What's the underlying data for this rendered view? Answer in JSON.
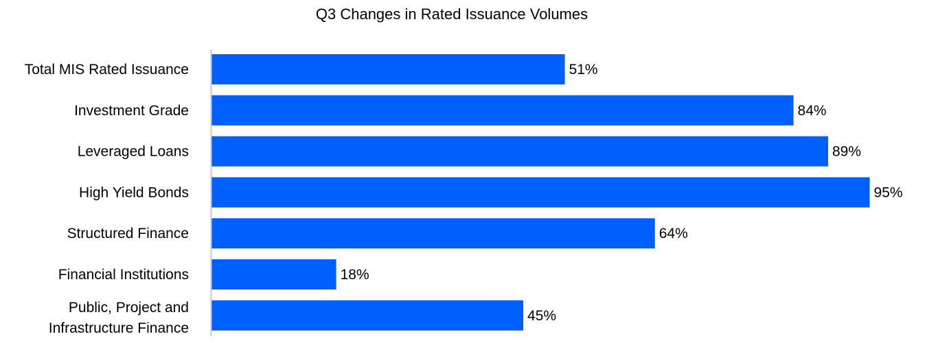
{
  "chart_data": {
    "type": "bar",
    "orientation": "horizontal",
    "title": "Q3 Changes in Rated Issuance Volumes",
    "categories": [
      "Total MIS Rated Issuance",
      "Investment Grade",
      "Leveraged Loans",
      "High Yield Bonds",
      "Structured Finance",
      "Financial Institutions",
      "Public, Project and Infrastructure Finance"
    ],
    "values": [
      51,
      84,
      89,
      95,
      64,
      18,
      45
    ],
    "data_labels": [
      "51%",
      "84%",
      "89%",
      "95%",
      "64%",
      "18%",
      "45%"
    ],
    "xlim": [
      0,
      100
    ],
    "grid": false,
    "bar_color": "#005FFF",
    "axis_color": "#C8C8C8"
  }
}
